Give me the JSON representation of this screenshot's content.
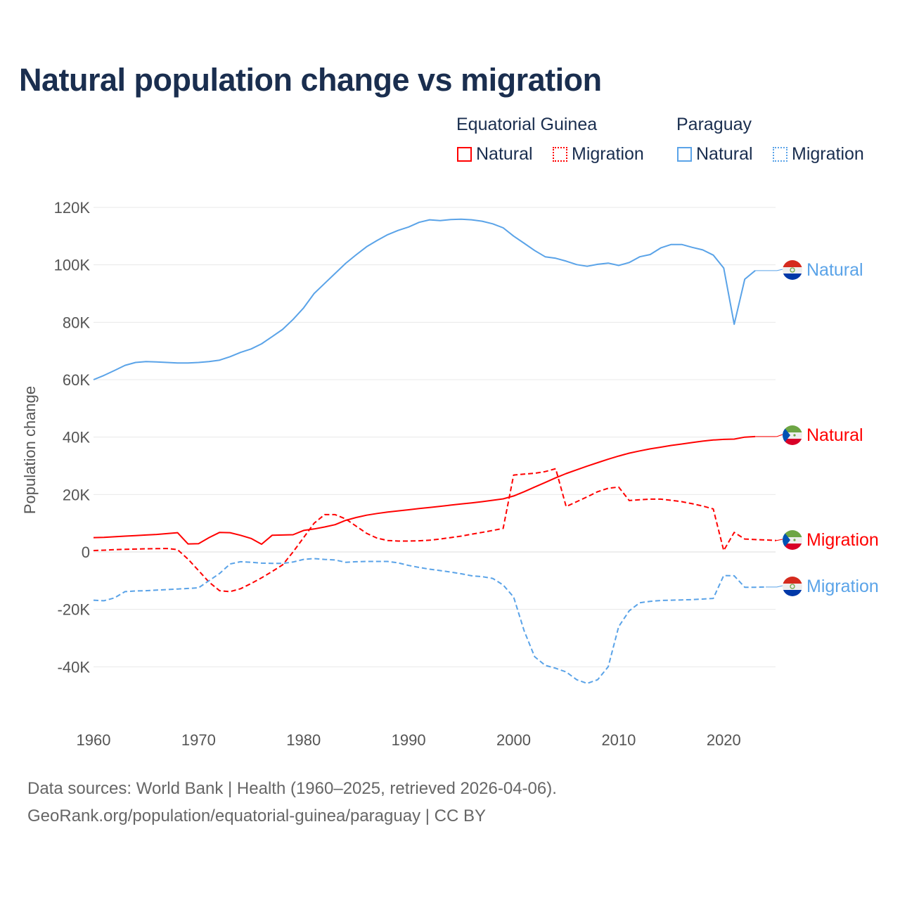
{
  "chart_data": {
    "type": "line",
    "title": "Natural population change vs migration",
    "xlabel": "",
    "ylabel": "Population change",
    "xlim": [
      1960,
      2025
    ],
    "ylim": [
      -50000,
      120000
    ],
    "x_ticks": [
      1960,
      1970,
      1980,
      1990,
      2000,
      2010,
      2020
    ],
    "x_tick_labels": [
      "1960",
      "1970",
      "1980",
      "1990",
      "2000",
      "2010",
      "2020"
    ],
    "y_ticks": [
      -40000,
      -20000,
      0,
      20000,
      40000,
      60000,
      80000,
      100000,
      120000
    ],
    "y_tick_labels": [
      "-40K",
      "-20K",
      "0",
      "20K",
      "40K",
      "60K",
      "80K",
      "100K",
      "120K"
    ],
    "grid": true,
    "legend": {
      "placement": "top-right",
      "groups": [
        {
          "country": "Equatorial Guinea",
          "items": [
            "Natural",
            "Migration"
          ]
        },
        {
          "country": "Paraguay",
          "items": [
            "Natural",
            "Migration"
          ]
        }
      ]
    },
    "series": [
      {
        "name": "Natural",
        "country": "Paraguay",
        "color": "#5aa3e8",
        "dash": false,
        "flag": "paraguay",
        "label_offset": 0,
        "start_year": 1960,
        "values": [
          60000,
          61500,
          63200,
          65000,
          66000,
          66300,
          66200,
          66000,
          65800,
          65800,
          66000,
          66300,
          66800,
          68000,
          69500,
          70700,
          72500,
          75000,
          77500,
          81000,
          85000,
          90000,
          93500,
          97000,
          100500,
          103500,
          106300,
          108500,
          110500,
          112000,
          113200,
          114800,
          115700,
          115400,
          115800,
          115900,
          115700,
          115200,
          114300,
          112900,
          110000,
          107500,
          105000,
          102800,
          102300,
          101300,
          100100,
          99500,
          100200,
          100600,
          99800,
          100800,
          102800,
          103600,
          105900,
          107100,
          107100,
          106100,
          105200,
          103400,
          98900,
          79300,
          95000,
          98000
        ]
      },
      {
        "name": "Natural",
        "country": "Equatorial Guinea",
        "color": "#ff0000",
        "dash": false,
        "flag": "equatorial-guinea",
        "label_offset": 0,
        "start_year": 1960,
        "values": [
          5000,
          5100,
          5300,
          5500,
          5700,
          5900,
          6100,
          6400,
          6700,
          2800,
          2900,
          5000,
          6800,
          6700,
          5800,
          4700,
          2700,
          5800,
          5900,
          6000,
          7500,
          8000,
          8700,
          9500,
          11000,
          12000,
          12800,
          13400,
          13900,
          14300,
          14700,
          15100,
          15500,
          15900,
          16300,
          16700,
          17100,
          17500,
          18000,
          18500,
          19500,
          21000,
          22600,
          24200,
          25800,
          27300,
          28600,
          29900,
          31100,
          32300,
          33400,
          34400,
          35200,
          35900,
          36500,
          37100,
          37600,
          38100,
          38600,
          39000,
          39200,
          39300,
          40000,
          40200
        ]
      },
      {
        "name": "Migration",
        "country": "Equatorial Guinea",
        "color": "#ff0000",
        "dash": true,
        "flag": "equatorial-guinea",
        "label_offset": 0,
        "start_year": 1960,
        "values": [
          500,
          600,
          800,
          900,
          1000,
          1100,
          1150,
          1200,
          800,
          -2500,
          -6500,
          -10500,
          -13500,
          -13800,
          -12800,
          -11000,
          -9000,
          -6800,
          -4500,
          0,
          5000,
          10000,
          13000,
          13000,
          11500,
          9000,
          6500,
          4800,
          4000,
          3800,
          3800,
          3900,
          4100,
          4500,
          5000,
          5500,
          6200,
          6800,
          7500,
          8200,
          26800,
          27100,
          27400,
          28000,
          29000,
          15800,
          17500,
          19200,
          21000,
          22200,
          22600,
          17900,
          18200,
          18400,
          18400,
          18000,
          17500,
          16800,
          16000,
          15000,
          500,
          6800,
          4500,
          4300,
          4200,
          4000
        ]
      },
      {
        "name": "Migration",
        "country": "Paraguay",
        "color": "#5aa3e8",
        "dash": true,
        "flag": "paraguay",
        "label_offset": 0,
        "start_year": 1960,
        "values": [
          -16800,
          -17000,
          -16000,
          -13800,
          -13600,
          -13500,
          -13300,
          -13100,
          -12900,
          -12700,
          -12500,
          -10000,
          -7500,
          -4200,
          -3400,
          -3600,
          -3900,
          -4000,
          -4000,
          -3500,
          -2600,
          -2300,
          -2600,
          -2800,
          -3600,
          -3400,
          -3300,
          -3300,
          -3300,
          -3800,
          -4700,
          -5400,
          -6000,
          -6500,
          -7000,
          -7600,
          -8300,
          -8600,
          -9200,
          -11500,
          -15700,
          -27500,
          -36500,
          -39500,
          -40500,
          -41800,
          -44500,
          -45800,
          -44500,
          -40000,
          -26000,
          -20500,
          -17700,
          -17200,
          -16900,
          -16800,
          -16700,
          -16600,
          -16400,
          -16200,
          -8200,
          -8300,
          -12300,
          -12300,
          -12200
        ]
      }
    ]
  },
  "footer": {
    "sources": "Data sources: World Bank | Health (1960–2025, retrieved 2026-04-06).",
    "link": "GeoRank.org/population/equatorial-guinea/paraguay | CC BY"
  }
}
